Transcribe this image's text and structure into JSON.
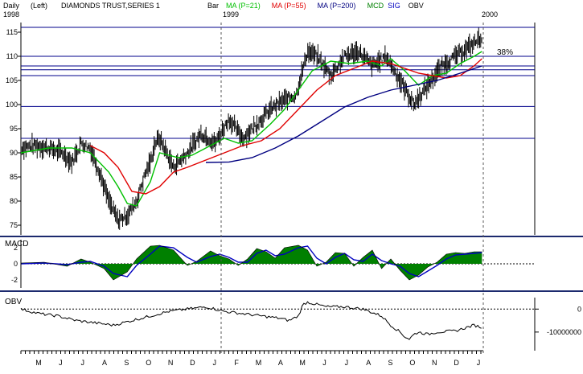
{
  "header": {
    "period": "Daily",
    "scale": "(Left)",
    "title": "DIAMONDS TRUST,SERIES 1",
    "style": "Bar",
    "year_left": "1998",
    "year_mid": "1999",
    "year_right": "2000"
  },
  "legend": [
    {
      "label": "MA (P=21)",
      "color": "#00c000"
    },
    {
      "label": "MA (P=55)",
      "color": "#e00000"
    },
    {
      "label": "MA (P=200)",
      "color": "#000080"
    },
    {
      "label": "MCD",
      "color": "#008000"
    },
    {
      "label": "SIG",
      "color": "#0000c0"
    },
    {
      "label": "OBV",
      "color": "#000000"
    }
  ],
  "annotations": {
    "fib_label": "38%"
  },
  "colors": {
    "price": "#000000",
    "ma21": "#00c000",
    "ma55": "#e00000",
    "ma200": "#000080",
    "guide": "#00008b",
    "macd_fill": "#008000",
    "signal": "#0000c0",
    "separator": "#1c2a6e"
  },
  "chart_data": [
    {
      "type": "line",
      "panel": "price",
      "ylim": [
        73,
        117
      ],
      "y_ticks": [
        "115",
        "110",
        "105",
        "100",
        "95",
        "90",
        "85",
        "80",
        "75"
      ],
      "x_months": [
        "M",
        "J",
        "J",
        "A",
        "S",
        "O",
        "N",
        "D",
        "J",
        "F",
        "M",
        "A",
        "M",
        "J",
        "J",
        "A",
        "S",
        "O",
        "N",
        "D",
        "J"
      ],
      "horizontal_levels": [
        116,
        110,
        108,
        107.2,
        106,
        99.6,
        93
      ],
      "series": [
        {
          "name": "Price",
          "x": [
            0,
            3,
            6,
            9,
            11,
            13,
            15,
            17,
            19,
            21,
            23,
            25,
            27,
            28,
            29,
            30,
            33,
            36,
            39,
            42,
            45,
            48,
            51,
            54,
            57,
            59.5,
            62,
            64,
            67,
            70,
            73,
            76,
            79,
            82,
            85,
            88,
            91,
            94,
            97,
            99.7
          ],
          "y": [
            91,
            91.5,
            91,
            90,
            88,
            92,
            91,
            86,
            80,
            76,
            77,
            80,
            86,
            88,
            92,
            93,
            87,
            90,
            94,
            92,
            97,
            93,
            96,
            99,
            101,
            102,
            111,
            110,
            106,
            110,
            111,
            108,
            110,
            105,
            100,
            104,
            108,
            110,
            112,
            114
          ]
        },
        {
          "name": "MA (P=21)",
          "x": [
            0,
            6,
            11,
            15,
            19,
            21,
            23,
            25,
            28,
            30,
            34,
            37,
            40,
            44,
            47,
            50,
            54,
            57,
            60,
            63,
            67,
            71,
            75,
            78,
            80,
            83,
            86,
            89,
            92,
            95,
            98,
            99.7
          ],
          "y": [
            90,
            91,
            91,
            90,
            86,
            83,
            79.5,
            79,
            84,
            90,
            89,
            89.5,
            91,
            93,
            92,
            92.5,
            96,
            99,
            103,
            107,
            109,
            108.5,
            109,
            108,
            109.5,
            107,
            104,
            106,
            106.5,
            108.5,
            110,
            111
          ]
        },
        {
          "name": "MA (P=55)",
          "x": [
            15,
            18,
            21,
            24,
            27,
            30,
            33,
            36,
            40,
            44,
            48,
            52,
            56,
            60,
            64,
            68,
            72,
            76,
            80,
            83,
            86,
            89,
            92,
            95,
            98,
            99.7
          ],
          "y": [
            91.5,
            90,
            87,
            82,
            81.5,
            83,
            86,
            87,
            88.5,
            90,
            91.5,
            92.5,
            95,
            99,
            103,
            106,
            107.5,
            109,
            108.5,
            107.5,
            106.5,
            106,
            105.5,
            106,
            108,
            109.5
          ]
        },
        {
          "name": "MA (P=200)",
          "x": [
            40,
            45,
            50,
            55,
            60,
            65,
            70,
            75,
            80,
            85,
            90,
            95,
            99.7
          ],
          "y": [
            88,
            88.1,
            89,
            91,
            93.5,
            96.5,
            99.5,
            101.5,
            103,
            104,
            105,
            106.5,
            108
          ]
        }
      ]
    },
    {
      "type": "area",
      "panel": "macd",
      "ylim": [
        -3,
        3
      ],
      "y_ticks": [
        "2",
        "0",
        "-2"
      ],
      "series": [
        {
          "name": "MCD",
          "x": [
            0,
            5,
            10,
            13,
            15,
            18,
            20,
            23,
            25,
            28,
            30,
            33,
            36,
            38,
            41,
            43,
            45,
            47,
            49,
            51,
            53,
            55,
            57,
            60,
            62,
            64,
            66,
            68,
            70,
            72,
            74,
            76,
            78,
            80,
            82,
            84,
            86,
            88,
            90,
            92,
            94,
            96,
            98,
            99.7
          ],
          "y": [
            0.1,
            0.2,
            -0.3,
            0.6,
            0.2,
            -0.6,
            -2.0,
            -1.0,
            0.6,
            2.2,
            2.3,
            1.7,
            -0.2,
            0.3,
            1.6,
            1.0,
            0.6,
            -0.2,
            0.6,
            1.9,
            1.5,
            0.7,
            2.0,
            2.3,
            1.7,
            -0.3,
            0.2,
            1.4,
            1.3,
            -0.3,
            0.8,
            1.7,
            -0.6,
            0.6,
            -0.8,
            -2.0,
            -1.4,
            -0.4,
            0.2,
            1.2,
            1.4,
            1.3,
            1.5,
            1.5
          ]
        },
        {
          "name": "SIG",
          "x": [
            0,
            5,
            10,
            13,
            15,
            18,
            20,
            23,
            25,
            28,
            30,
            33,
            36,
            38,
            41,
            43,
            45,
            47,
            49,
            51,
            53,
            55,
            57,
            60,
            62,
            64,
            66,
            68,
            70,
            72,
            74,
            76,
            78,
            80,
            82,
            84,
            86,
            88,
            90,
            92,
            94,
            96,
            98,
            99.7
          ],
          "y": [
            0.0,
            0.1,
            -0.1,
            0.2,
            0.3,
            -0.3,
            -1.2,
            -1.6,
            -0.2,
            1.2,
            2.2,
            2.0,
            0.8,
            0.2,
            0.9,
            1.2,
            0.8,
            0.2,
            0.2,
            1.3,
            1.7,
            1.0,
            1.2,
            2.0,
            2.2,
            0.7,
            0.0,
            0.8,
            1.3,
            0.5,
            0.3,
            1.2,
            0.4,
            0.0,
            -0.3,
            -1.2,
            -1.6,
            -0.9,
            -0.2,
            0.6,
            1.1,
            1.2,
            1.3,
            1.4
          ]
        }
      ]
    },
    {
      "type": "line",
      "panel": "obv",
      "ylim": [
        -16000000,
        5000000
      ],
      "y_ticks": [
        "0",
        "-10000000"
      ],
      "series": [
        {
          "name": "OBV",
          "x": [
            0,
            4,
            8,
            12,
            16,
            20,
            24,
            28,
            32,
            36,
            40,
            44,
            48,
            52,
            56,
            58,
            60,
            61,
            62,
            64,
            66,
            70,
            74,
            78,
            80,
            82,
            83,
            84,
            85,
            86,
            88,
            90,
            94,
            98,
            99.7
          ],
          "y": [
            0,
            -2000000,
            -3000000,
            -5000000,
            -6000000,
            -7000000,
            -5000000,
            -3000000,
            -1000000,
            0,
            1000000,
            -1000000,
            -2000000,
            -3000000,
            -4000000,
            -5000000,
            -3000000,
            2000000,
            3000000,
            2000000,
            1000000,
            1000000,
            0,
            -3000000,
            -7000000,
            -10000000,
            -12000000,
            -13000000,
            -11000000,
            -10000000,
            -11000000,
            -10000000,
            -9500000,
            -7000000,
            -8000000
          ]
        }
      ]
    }
  ]
}
